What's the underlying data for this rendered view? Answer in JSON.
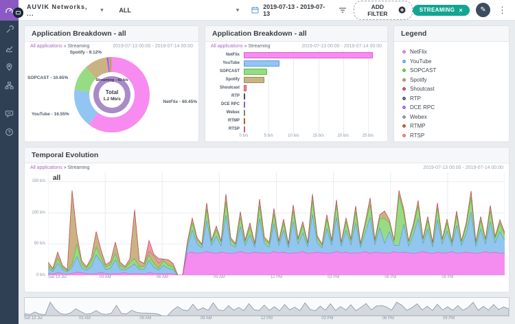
{
  "topbar": {
    "company": "AUVIK Networks, ...",
    "scope": "ALL",
    "date_range": "2019-07-13 - 2019-07-13",
    "add_filter_label": "ADD FILTER",
    "filter_chip": "STREAMING"
  },
  "panels": {
    "chart_date_range": "2019-07-13 00:00 - 2019-07-14 00:00",
    "breadcrumb_link": "All applications",
    "breadcrumb_sep": "»",
    "breadcrumb_current": "Streaming",
    "donut": {
      "title": "Application Breakdown - all",
      "center_title": "Total",
      "center_value": "1.2 Mb/s",
      "inner_ring_label": "Streaming - 43 b/s"
    },
    "bars": {
      "title": "Application Breakdown - all"
    },
    "legend": {
      "title": "Legend"
    },
    "temporal": {
      "title": "Temporal Evolution",
      "series_label": "all"
    }
  },
  "apps": [
    {
      "name": "NetFlix",
      "fill": "#f88bf0",
      "stroke": "#d45fc8",
      "dot": "#e072de"
    },
    {
      "name": "YouTube",
      "fill": "#92c5f2",
      "stroke": "#5a9bd8",
      "dot": "#5aa7e8"
    },
    {
      "name": "SOPCAST",
      "fill": "#97dc82",
      "stroke": "#5cb83f",
      "dot": "#4ec43e"
    },
    {
      "name": "Spotify",
      "fill": "#c8b383",
      "stroke": "#a08c52",
      "dot": "#a3924e"
    },
    {
      "name": "Shoutcast",
      "fill": "#ef93a2",
      "stroke": "#c24b5e",
      "dot": "#c4414e"
    },
    {
      "name": "RTP",
      "fill": "#5a6c82",
      "stroke": "#3c4c60",
      "dot": "#46586e"
    },
    {
      "name": "DCE RPC",
      "fill": "#b48ae8",
      "stroke": "#8a5ad0",
      "dot": "#9a66dd"
    },
    {
      "name": "Webex",
      "fill": "#a8a896",
      "stroke": "#82826e",
      "dot": "#90907e"
    },
    {
      "name": "RTMP",
      "fill": "#c8824a",
      "stroke": "#a85b2a",
      "dot": "#a85b2a"
    },
    {
      "name": "RTSP",
      "fill": "#f098a0",
      "stroke": "#d05a68",
      "dot": "#e4727e"
    }
  ],
  "colors": {
    "accent_teal": "#14a493",
    "sidebar_bg": "#2f4054",
    "sidebar_active": "#8a5ac2",
    "link_purple": "#a468c8",
    "inner_ring_purple": "#a98bc8",
    "grid": "#e8ebf0",
    "mini_fill": "#d3d9de",
    "mini_stroke": "#8b959e"
  },
  "chart_data": [
    {
      "type": "pie",
      "title": "Application Breakdown - all",
      "labels": [
        "NetFlix",
        "YouTube",
        "SOPCAST",
        "Spotify",
        "Shoutcast",
        "RTP",
        "DCE RPC",
        "Webex",
        "RTMP",
        "RTSP"
      ],
      "values": [
        60.45,
        16.55,
        10.65,
        9.12,
        0.9,
        0.45,
        0.55,
        0.35,
        0.45,
        0.53
      ],
      "unit": "%",
      "displayed_labels": [
        "NetFlix - 60.45%",
        "YouTube - 16.55%",
        "SOPCAST - 10.65%",
        "Spotify - 9.12%"
      ],
      "inner_ring": "Streaming - 43 b/s",
      "center": "Total 1.2 Mb/s"
    },
    {
      "type": "bar",
      "orientation": "horizontal",
      "title": "Application Breakdown - all",
      "categories": [
        "NetFlix",
        "YouTube",
        "SOPCAST",
        "Spotify",
        "Shoutcast",
        "RTP",
        "DCE RPC",
        "Webex",
        "RTMP",
        "RTSP"
      ],
      "values": [
        26,
        7.2,
        4.7,
        4.1,
        0.5,
        0.22,
        0.28,
        0.18,
        0.22,
        0.18
      ],
      "unit": "b/s",
      "x_ticks": [
        "0 b/s",
        "5 b/s",
        "10 b/s",
        "15 b/s",
        "20 b/s",
        "25 b/s"
      ],
      "x_tick_values": [
        0,
        5,
        10,
        15,
        20,
        25
      ],
      "xlim": [
        0,
        27.5
      ]
    },
    {
      "type": "area",
      "stacked": true,
      "title": "Temporal Evolution",
      "x_ticks": [
        "Sat 13 Jul",
        "03 AM",
        "06 AM",
        "09 AM",
        "12 PM",
        "03 PM",
        "06 PM",
        "09 PM"
      ],
      "y_ticks": [
        "0 b/s",
        "50 b/s",
        "100 b/s",
        "150 b/s"
      ],
      "y_tick_values": [
        0,
        50,
        100,
        150
      ],
      "ylim": [
        0,
        165
      ],
      "points_per_day": 96,
      "series": [
        {
          "name": "NetFlix",
          "values": [
            3,
            2,
            4,
            3,
            2,
            3,
            5,
            4,
            3,
            2,
            3,
            4,
            3,
            2,
            3,
            3,
            4,
            2,
            3,
            3,
            2,
            4,
            3,
            3,
            2,
            3,
            3,
            0,
            0,
            36,
            37,
            35,
            36,
            38,
            36,
            35,
            37,
            36,
            35,
            36,
            38,
            36,
            35,
            37,
            36,
            36,
            35,
            38,
            36,
            37,
            35,
            36,
            36,
            38,
            35,
            36,
            37,
            36,
            35,
            36,
            38,
            36,
            37,
            35,
            36,
            36,
            38,
            35,
            37,
            36,
            36,
            35,
            38,
            36,
            37,
            36,
            35,
            36,
            38,
            36,
            35,
            37,
            36,
            36,
            38,
            35,
            36,
            37,
            36,
            35,
            36,
            38,
            36,
            37,
            35,
            36
          ]
        },
        {
          "name": "YouTube",
          "values": [
            8,
            4,
            15,
            6,
            3,
            10,
            25,
            8,
            5,
            12,
            30,
            18,
            6,
            9,
            22,
            7,
            4,
            11,
            15,
            6,
            8,
            20,
            10,
            5,
            14,
            8,
            6,
            0,
            0,
            10,
            35,
            15,
            8,
            50,
            12,
            28,
            10,
            60,
            14,
            9,
            40,
            12,
            30,
            8,
            55,
            15,
            10,
            45,
            12,
            35,
            9,
            50,
            14,
            30,
            10,
            62,
            15,
            8,
            40,
            12,
            55,
            10,
            35,
            14,
            48,
            9,
            30,
            58,
            12,
            40,
            15,
            35,
            10,
            12,
            45,
            11,
            30,
            55,
            13,
            38,
            10,
            52,
            14,
            35,
            9,
            45,
            12,
            30,
            65,
            11,
            38,
            12,
            50,
            15,
            35,
            20
          ]
        },
        {
          "name": "SOPCAST",
          "values": [
            4,
            2,
            8,
            3,
            2,
            5,
            20,
            6,
            3,
            8,
            12,
            7,
            4,
            6,
            10,
            5,
            3,
            7,
            9,
            4,
            5,
            8,
            6,
            3,
            7,
            5,
            4,
            0,
            0,
            5,
            12,
            6,
            4,
            18,
            5,
            10,
            6,
            22,
            7,
            4,
            15,
            5,
            12,
            4,
            20,
            6,
            5,
            16,
            5,
            12,
            4,
            18,
            6,
            12,
            5,
            22,
            7,
            4,
            15,
            5,
            20,
            5,
            14,
            6,
            18,
            4,
            12,
            21,
            5,
            15,
            40,
            14,
            6,
            80,
            18,
            6,
            12,
            20,
            6,
            14,
            5,
            19,
            6,
            13,
            4,
            16,
            5,
            12,
            24,
            5,
            14,
            6,
            18,
            7,
            13,
            8
          ]
        },
        {
          "name": "Spotify",
          "values": [
            6,
            3,
            10,
            4,
            2,
            118,
            15,
            5,
            3,
            6,
            25,
            12,
            4,
            5,
            18,
            6,
            3,
            6,
            78,
            10,
            4,
            6,
            12,
            8,
            3,
            9,
            6,
            0,
            0,
            3,
            8,
            4,
            2,
            10,
            3,
            6,
            2,
            12,
            4,
            2,
            9,
            3,
            7,
            2,
            11,
            4,
            3,
            8,
            2,
            6,
            2,
            9,
            3,
            6,
            2,
            10,
            4,
            2,
            7,
            3,
            8,
            2,
            6,
            3,
            9,
            2,
            5,
            10,
            3,
            6,
            12,
            5,
            2,
            8,
            6,
            2,
            5,
            9,
            2,
            6,
            3,
            8,
            2,
            6,
            3,
            7,
            2,
            5,
            10,
            3,
            6,
            2,
            8,
            3,
            6,
            4
          ]
        },
        {
          "name": "Shoutcast",
          "values": [
            0,
            0,
            0,
            0,
            0,
            0,
            0,
            0,
            0,
            0,
            0,
            0,
            0,
            0,
            0,
            0,
            0,
            0,
            0,
            0,
            0,
            18,
            3,
            8,
            0,
            0,
            0,
            0,
            0,
            0,
            0,
            0,
            0,
            0,
            0,
            0,
            0,
            0,
            0,
            0,
            0,
            0,
            0,
            0,
            0,
            0,
            0,
            0,
            0,
            0,
            0,
            0,
            0,
            0,
            0,
            0,
            0,
            0,
            0,
            0,
            0,
            0,
            0,
            0,
            0,
            0,
            0,
            0,
            0,
            0,
            0,
            0,
            0,
            0,
            0,
            0,
            0,
            0,
            0,
            0,
            0,
            0,
            0,
            0,
            0,
            0,
            0,
            0,
            0,
            0,
            0,
            0,
            0,
            0,
            0,
            0
          ]
        }
      ]
    },
    {
      "type": "area",
      "name": "overview-brush",
      "derived": "sum of temporal series",
      "x_ticks": [
        "Sat 13 Jul",
        "03 AM",
        "06 AM",
        "09 AM",
        "12 PM",
        "03 PM",
        "06 PM",
        "09 PM"
      ]
    }
  ]
}
